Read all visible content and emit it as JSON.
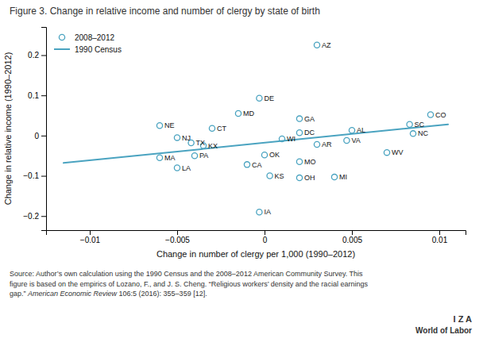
{
  "chart_data": {
    "type": "scatter",
    "title": "Figure 3. Change in relative income and number of clergy by state of birth",
    "xlabel": "Change in number of clergy per 1,000 (1990–2012)",
    "ylabel": "Change in relative income (1990–2012)",
    "series": [
      {
        "name": "2008–2012",
        "type": "scatter",
        "color": "#4aa3c0",
        "marker": "circle",
        "x": [
          0.003,
          0.0095,
          0.0083,
          0.0085,
          -0.0003,
          -0.0015,
          0.002,
          0.005,
          0.0047,
          0.002,
          0.001,
          0.003,
          0.007,
          -0.006,
          -0.005,
          -0.003,
          -0.0042,
          -0.0035,
          -0.004,
          -0.006,
          -0.005,
          -0.001,
          0.0,
          0.002,
          0.0003,
          0.002,
          0.004,
          -0.0003
        ],
        "values": [
          0.225,
          0.052,
          0.028,
          0.005,
          0.093,
          0.055,
          0.042,
          0.013,
          -0.012,
          0.007,
          -0.008,
          -0.022,
          -0.042,
          0.025,
          -0.005,
          0.018,
          -0.018,
          -0.025,
          -0.05,
          -0.055,
          -0.08,
          -0.072,
          -0.048,
          -0.065,
          -0.1,
          -0.105,
          -0.103,
          -0.19
        ],
        "labels": [
          "AZ",
          "CO",
          "SC",
          "NC",
          "DE",
          "MD",
          "GA",
          "AL",
          "VA",
          "DC",
          "WI",
          "AR",
          "WV",
          "NE",
          "NJ",
          "CT",
          "TX",
          "KX",
          "PA",
          "MA",
          "LA",
          "CA",
          "OK",
          "MO",
          "KS",
          "OH",
          "MI",
          "IA"
        ]
      },
      {
        "name": "1990 Census",
        "type": "line",
        "color": "#4aa3c0",
        "line_style": "solid",
        "x": [
          -0.0115,
          0.0105
        ],
        "values": [
          -0.068,
          0.028
        ]
      }
    ],
    "xlim": [
      -0.0125,
      0.0115
    ],
    "ylim": [
      -0.235,
      0.27
    ],
    "xticks": [
      {
        "value": -0.01,
        "label": "−0.01"
      },
      {
        "value": -0.005,
        "label": "−0.005"
      },
      0,
      0.005,
      0.01
    ],
    "yticks": [
      {
        "value": -0.2,
        "label": "−0.2"
      },
      {
        "value": -0.1,
        "label": "−0.1"
      },
      0,
      0.1,
      0.2
    ],
    "grid": false,
    "legend": "upper left",
    "annotations": [
      "Source: Author’s own calculation using the 1990 Census and the 2008–2012 American Community Survey. This",
      "figure is based on the empirics of Lozano, F., and J. S. Cheng. “Religious workers’ density and the racial earnings",
      "gap.” ",
      "American Economic Review",
      " 106:5 (2016): 355–359 [12].",
      "I Z A",
      "World of Labor"
    ]
  }
}
